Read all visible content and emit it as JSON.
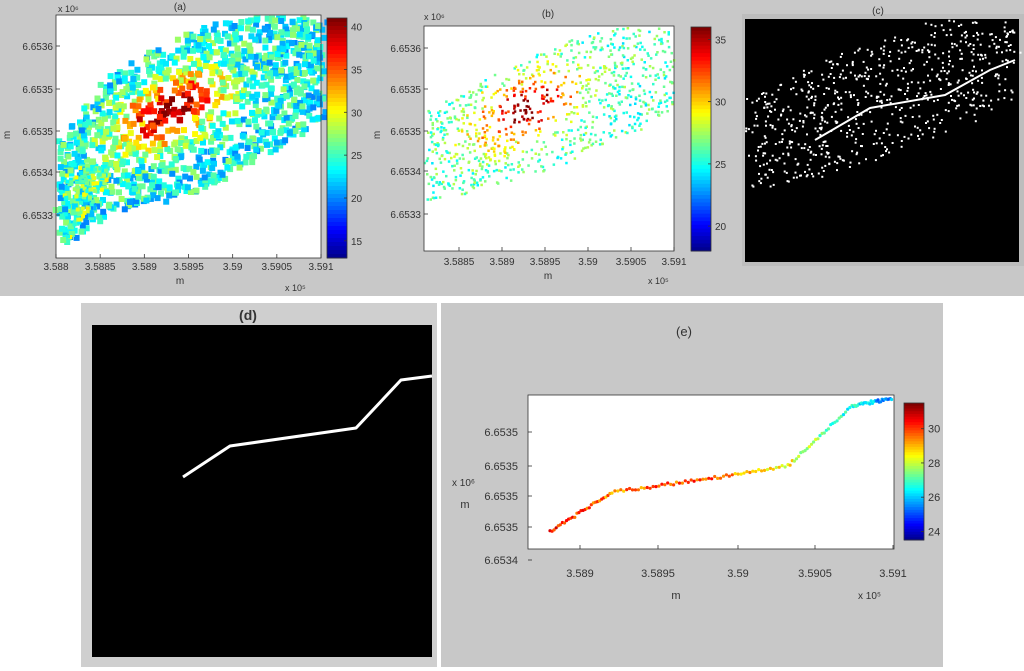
{
  "chart_data": [
    {
      "id": "a",
      "type": "heatmap",
      "title": "(a)",
      "xlabel": "m",
      "ylabel": "m",
      "x_exponent": "x 10⁵",
      "y_exponent": "x 10⁶",
      "xlim": [
        3.588,
        3.591
      ],
      "x_ticks": [
        "3.588",
        "3.5885",
        "3.589",
        "3.5895",
        "3.59",
        "3.5905",
        "3.591"
      ],
      "y_ticks": [
        "6.6536",
        "6.6535",
        "6.6535",
        "6.6534",
        "6.6533"
      ],
      "colorbar": {
        "ticks": [
          "40",
          "35",
          "30",
          "25",
          "20",
          "15"
        ],
        "range": [
          13,
          41
        ]
      },
      "grid": false
    },
    {
      "id": "b",
      "type": "scatter",
      "title": "(b)",
      "xlabel": "m",
      "ylabel": "m",
      "x_exponent": "x 10⁵",
      "y_exponent": "x 10⁶",
      "x_ticks": [
        "3.5885",
        "3.589",
        "3.5895",
        "3.59",
        "3.5905",
        "3.591"
      ],
      "y_ticks": [
        "6.6536",
        "6.6535",
        "6.6535",
        "6.6534",
        "6.6533"
      ],
      "colorbar": {
        "ticks": [
          "35",
          "30",
          "25",
          "20"
        ],
        "range": [
          18,
          36
        ]
      },
      "grid": false
    },
    {
      "id": "c",
      "type": "heatmap",
      "title": "(c)",
      "binary_mask": true
    },
    {
      "id": "d",
      "type": "line",
      "title": "(d)",
      "binary_mask": true
    },
    {
      "id": "e",
      "type": "scatter",
      "title": "(e)",
      "xlabel": "m",
      "ylabel": "m",
      "x_exponent": "x 10⁵",
      "y_exponent": "x 10⁶",
      "x_ticks": [
        "3.589",
        "3.5895",
        "3.59",
        "3.5905",
        "3.591"
      ],
      "y_ticks": [
        "6.6535",
        "6.6535",
        "6.6535",
        "6.6535",
        "6.6534"
      ],
      "colorbar": {
        "ticks": [
          "30",
          "28",
          "26",
          "24"
        ],
        "range": [
          23.5,
          31.5
        ]
      },
      "series": [
        {
          "x": [
            3.5888,
            3.5892,
            3.5895,
            3.5899,
            3.5902,
            3.59045,
            3.5907,
            3.591
          ],
          "y": [
            6.65344,
            6.65347,
            6.65347,
            6.65348,
            6.65349,
            6.65354,
            6.65357,
            6.65358
          ]
        }
      ],
      "grid": false
    }
  ]
}
